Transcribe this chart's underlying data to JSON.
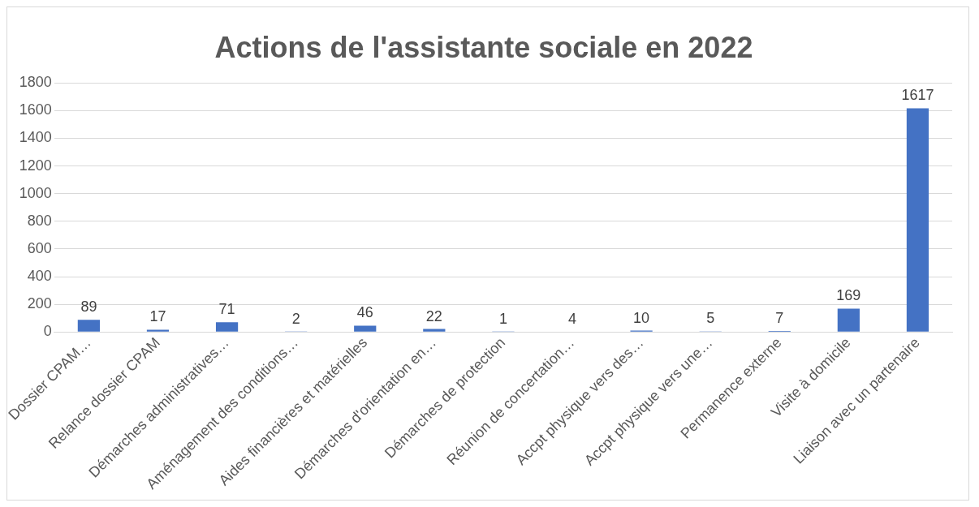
{
  "chart_data": {
    "type": "bar",
    "title": "Actions de l'assistante sociale en 2022",
    "categories": [
      "Dossier CPAM…",
      "Relance dossier CPAM",
      "Démarches administratives…",
      "Aménagement des conditions…",
      "Aides financières et matérielles",
      "Démarches d'orientation en…",
      "Démarches de protection",
      "Réunion de concertation…",
      "Accpt physique vers des…",
      "Accpt physique vers une…",
      "Permanence externe",
      "Visite à domicile",
      "Liaison avec un partenaire"
    ],
    "values": [
      89,
      17,
      71,
      2,
      46,
      22,
      1,
      4,
      10,
      5,
      7,
      169,
      1617
    ],
    "color": "#4472c4",
    "ylim": [
      0,
      1800
    ],
    "yticks": [
      0,
      200,
      400,
      600,
      800,
      1000,
      1200,
      1400,
      1600,
      1800
    ],
    "grid": "y",
    "data_labels": true
  }
}
